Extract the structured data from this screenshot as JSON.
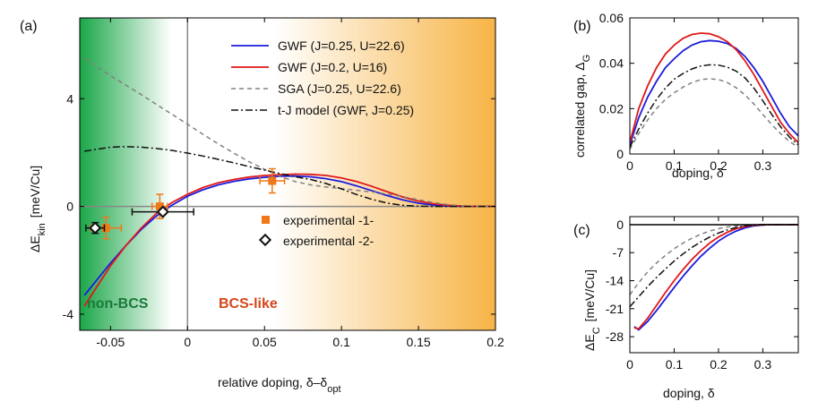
{
  "chart_data": [
    {
      "panel": "(a)",
      "type": "line",
      "xlabel": "relative doping, δ–δ",
      "xlabel_sub": "opt",
      "ylabel": "ΔE",
      "ylabel_sub": "kin",
      "ylabel_units": "[meV/Cu]",
      "xlim": [
        -0.07,
        0.2
      ],
      "ylim": [
        -4.6,
        7.0
      ],
      "xticks": [
        -0.05,
        0,
        0.05,
        0.1,
        0.15,
        0.2
      ],
      "xtick_labels": [
        "-0.05",
        "0",
        "0.05",
        "0.1",
        "0.15",
        "0.2"
      ],
      "yticks": [
        -4,
        0,
        4
      ],
      "ytick_labels": [
        "-4",
        "0",
        "4"
      ],
      "regions": [
        {
          "label": "non-BCS",
          "color": "#1a7a3a"
        },
        {
          "label": "BCS-like",
          "color": "#d4461a"
        }
      ],
      "series": [
        {
          "name": "GWF (J=0.25, U=22.6)",
          "color": "#1c1cdc",
          "style": "solid",
          "x": [
            -0.067,
            -0.05,
            -0.04,
            -0.03,
            -0.02,
            -0.01,
            0,
            0.01,
            0.02,
            0.03,
            0.04,
            0.05,
            0.06,
            0.07,
            0.08,
            0.09,
            0.1,
            0.11,
            0.12,
            0.13,
            0.14,
            0.15,
            0.16,
            0.17,
            0.18,
            0.19,
            0.2
          ],
          "y": [
            -3.3,
            -2.1,
            -1.45,
            -0.85,
            -0.35,
            0.05,
            0.38,
            0.62,
            0.8,
            0.93,
            1.02,
            1.08,
            1.12,
            1.13,
            1.1,
            1.03,
            0.92,
            0.76,
            0.58,
            0.4,
            0.24,
            0.12,
            0.05,
            0.015,
            0.003,
            0,
            0
          ]
        },
        {
          "name": "GWF (J=0.2, U=16)",
          "color": "#e01818",
          "style": "solid",
          "x": [
            -0.067,
            -0.05,
            -0.04,
            -0.03,
            -0.02,
            -0.01,
            0,
            0.01,
            0.02,
            0.03,
            0.04,
            0.05,
            0.06,
            0.07,
            0.08,
            0.09,
            0.1,
            0.11,
            0.12,
            0.13,
            0.14,
            0.15,
            0.16,
            0.17,
            0.18,
            0.19,
            0.2
          ],
          "y": [
            -3.7,
            -2.2,
            -1.45,
            -0.8,
            -0.25,
            0.15,
            0.45,
            0.7,
            0.88,
            1.0,
            1.09,
            1.15,
            1.18,
            1.2,
            1.19,
            1.15,
            1.06,
            0.92,
            0.74,
            0.54,
            0.35,
            0.2,
            0.1,
            0.04,
            0.01,
            0,
            0
          ]
        },
        {
          "name": "SGA (J=0.25, U=22.6)",
          "color": "#808080",
          "style": "dashed",
          "x": [
            -0.067,
            -0.05,
            -0.04,
            -0.03,
            -0.02,
            -0.01,
            0,
            0.01,
            0.02,
            0.03,
            0.04,
            0.05,
            0.06,
            0.07,
            0.08,
            0.09,
            0.1,
            0.11,
            0.12,
            0.13,
            0.14,
            0.15,
            0.16,
            0.17,
            0.18,
            0.19,
            0.2
          ],
          "y": [
            5.5,
            4.85,
            4.5,
            4.15,
            3.78,
            3.42,
            3.05,
            2.68,
            2.32,
            1.98,
            1.66,
            1.38,
            1.12,
            0.92,
            0.8,
            0.72,
            0.66,
            0.6,
            0.54,
            0.46,
            0.36,
            0.25,
            0.14,
            0.06,
            0.02,
            0,
            0
          ]
        },
        {
          "name": "t-J model (GWF, J=0.25)",
          "color": "#111111",
          "style": "dashdot",
          "x": [
            -0.067,
            -0.05,
            -0.04,
            -0.03,
            -0.02,
            -0.01,
            0,
            0.01,
            0.02,
            0.03,
            0.04,
            0.05,
            0.06,
            0.07,
            0.08,
            0.09,
            0.1,
            0.11,
            0.12,
            0.13,
            0.14,
            0.15,
            0.16,
            0.17,
            0.18,
            0.19,
            0.2
          ],
          "y": [
            2.05,
            2.2,
            2.22,
            2.2,
            2.15,
            2.08,
            1.98,
            1.87,
            1.75,
            1.62,
            1.48,
            1.35,
            1.22,
            1.1,
            1.0,
            0.85,
            0.65,
            0.44,
            0.26,
            0.12,
            0.04,
            0.01,
            0,
            0,
            0,
            0,
            0
          ]
        }
      ],
      "experimental": [
        {
          "name": "experimental -1-",
          "marker": "square",
          "color": "#f07818",
          "points": [
            {
              "x": -0.053,
              "y": -0.8,
              "xerr": 0.01,
              "yerr": 0.4
            },
            {
              "x": -0.018,
              "y": 0.0,
              "xerr": 0.005,
              "yerr": 0.45
            },
            {
              "x": 0.055,
              "y": 0.95,
              "xerr": 0.008,
              "yerr": 0.45
            }
          ]
        },
        {
          "name": "experimental -2-",
          "marker": "diamond",
          "color": "#111111",
          "points": [
            {
              "x": -0.06,
              "y": -0.8,
              "xerr": 0.006,
              "yerr": 0.2
            },
            {
              "x": -0.016,
              "y": -0.2,
              "xerr": 0.02,
              "yerr": 0.05
            }
          ]
        }
      ]
    },
    {
      "panel": "(b)",
      "type": "line",
      "xlabel": "doping, δ",
      "ylabel": "correlated gap, Δ",
      "ylabel_sub": "G",
      "xlim": [
        0,
        0.38
      ],
      "ylim": [
        0,
        0.06
      ],
      "xticks": [
        0,
        0.1,
        0.2,
        0.3
      ],
      "xtick_labels": [
        "0",
        "0.1",
        "0.2",
        "0.3"
      ],
      "yticks": [
        0,
        0.02,
        0.04,
        0.06
      ],
      "ytick_labels": [
        "0",
        "0.02",
        "0.04",
        "0.06"
      ],
      "series": [
        {
          "name": "GWF (J=0.25, U=22.6)",
          "color": "#1c1cdc",
          "style": "solid",
          "x": [
            0,
            0.02,
            0.04,
            0.06,
            0.08,
            0.1,
            0.12,
            0.14,
            0.16,
            0.18,
            0.2,
            0.22,
            0.24,
            0.26,
            0.28,
            0.3,
            0.32,
            0.34,
            0.36,
            0.38
          ],
          "y": [
            0.004,
            0.016,
            0.025,
            0.032,
            0.038,
            0.042,
            0.0455,
            0.048,
            0.0495,
            0.05,
            0.0497,
            0.0487,
            0.0465,
            0.043,
            0.038,
            0.032,
            0.025,
            0.018,
            0.012,
            0.008
          ]
        },
        {
          "name": "GWF (J=0.2, U=16)",
          "color": "#e01818",
          "style": "solid",
          "x": [
            0,
            0.02,
            0.04,
            0.06,
            0.08,
            0.1,
            0.12,
            0.14,
            0.16,
            0.18,
            0.2,
            0.22,
            0.24,
            0.26,
            0.28,
            0.3,
            0.32,
            0.34,
            0.36,
            0.38
          ],
          "y": [
            0.005,
            0.02,
            0.03,
            0.038,
            0.044,
            0.048,
            0.051,
            0.0527,
            0.0533,
            0.053,
            0.0517,
            0.0495,
            0.046,
            0.041,
            0.035,
            0.028,
            0.021,
            0.014,
            0.009,
            0.005
          ]
        },
        {
          "name": "SGA (J=0.25, U=22.6)",
          "color": "#808080",
          "style": "dashed",
          "x": [
            0,
            0.02,
            0.04,
            0.06,
            0.08,
            0.1,
            0.12,
            0.14,
            0.16,
            0.18,
            0.2,
            0.22,
            0.24,
            0.26,
            0.28,
            0.3,
            0.32,
            0.34,
            0.36,
            0.38
          ],
          "y": [
            0.002,
            0.009,
            0.015,
            0.02,
            0.024,
            0.027,
            0.0295,
            0.0315,
            0.0328,
            0.0332,
            0.0328,
            0.0315,
            0.0292,
            0.026,
            0.022,
            0.0175,
            0.013,
            0.009,
            0.0055,
            0.003
          ]
        },
        {
          "name": "t-J model (GWF, J=0.25)",
          "color": "#111111",
          "style": "dashdot",
          "x": [
            0,
            0.02,
            0.04,
            0.06,
            0.08,
            0.1,
            0.12,
            0.14,
            0.16,
            0.18,
            0.2,
            0.22,
            0.24,
            0.26,
            0.28,
            0.3,
            0.32,
            0.34,
            0.36,
            0.38
          ],
          "y": [
            0.003,
            0.011,
            0.018,
            0.024,
            0.029,
            0.033,
            0.0355,
            0.0375,
            0.0388,
            0.0393,
            0.0392,
            0.0383,
            0.0365,
            0.0335,
            0.029,
            0.0235,
            0.0175,
            0.012,
            0.0075,
            0.004
          ]
        }
      ]
    },
    {
      "panel": "(c)",
      "type": "line",
      "xlabel": "doping, δ",
      "ylabel": "ΔE",
      "ylabel_sub": "C",
      "ylabel_units": "[meV/Cu]",
      "xlim": [
        0,
        0.38
      ],
      "ylim": [
        -32,
        2
      ],
      "xticks": [
        0,
        0.1,
        0.2,
        0.3
      ],
      "xtick_labels": [
        "0",
        "0.1",
        "0.2",
        "0.3"
      ],
      "yticks": [
        0,
        -7,
        -14,
        -21,
        -28
      ],
      "ytick_labels": [
        "0",
        "-7",
        "-14",
        "-21",
        "-28"
      ],
      "series": [
        {
          "name": "GWF (J=0.25, U=22.6)",
          "color": "#1c1cdc",
          "style": "solid",
          "x": [
            0.01,
            0.02,
            0.04,
            0.06,
            0.08,
            0.1,
            0.12,
            0.14,
            0.16,
            0.18,
            0.2,
            0.22,
            0.24,
            0.26,
            0.28,
            0.3,
            0.32,
            0.34,
            0.36,
            0.38
          ],
          "y": [
            -25.5,
            -26.3,
            -24.2,
            -21.5,
            -18.6,
            -15.7,
            -12.9,
            -10.3,
            -7.9,
            -5.9,
            -4.1,
            -2.7,
            -1.6,
            -0.8,
            -0.3,
            -0.1,
            0,
            0,
            0,
            0
          ]
        },
        {
          "name": "GWF (J=0.2, U=16)",
          "color": "#e01818",
          "style": "solid",
          "x": [
            0.01,
            0.02,
            0.04,
            0.06,
            0.08,
            0.1,
            0.12,
            0.14,
            0.16,
            0.18,
            0.2,
            0.22,
            0.24,
            0.26,
            0.28,
            0.3,
            0.32,
            0.34,
            0.36,
            0.38
          ],
          "y": [
            -25.8,
            -26.0,
            -23.4,
            -20.2,
            -17.0,
            -14.0,
            -11.2,
            -8.7,
            -6.5,
            -4.6,
            -3.1,
            -1.9,
            -1.0,
            -0.45,
            -0.15,
            -0.05,
            0,
            0,
            0,
            0
          ]
        },
        {
          "name": "SGA (J=0.25, U=22.6)",
          "color": "#808080",
          "style": "dashed",
          "x": [
            0,
            0.02,
            0.04,
            0.06,
            0.08,
            0.1,
            0.12,
            0.14,
            0.16,
            0.18,
            0.2,
            0.22,
            0.24,
            0.26,
            0.28,
            0.3,
            0.32,
            0.34,
            0.36,
            0.38
          ],
          "y": [
            -17.5,
            -14.5,
            -11.8,
            -9.6,
            -7.7,
            -6.0,
            -4.6,
            -3.4,
            -2.4,
            -1.6,
            -1.0,
            -0.6,
            -0.3,
            -0.12,
            -0.04,
            0,
            0,
            0,
            0,
            0
          ]
        },
        {
          "name": "t-J model (GWF, J=0.25)",
          "color": "#111111",
          "style": "dashdot",
          "x": [
            0,
            0.02,
            0.04,
            0.06,
            0.08,
            0.1,
            0.12,
            0.14,
            0.16,
            0.18,
            0.2,
            0.22,
            0.24,
            0.26,
            0.28,
            0.3,
            0.32,
            0.34,
            0.36,
            0.38
          ],
          "y": [
            -20.5,
            -18.0,
            -15.5,
            -13.2,
            -11.1,
            -9.1,
            -7.3,
            -5.7,
            -4.3,
            -3.1,
            -2.1,
            -1.3,
            -0.7,
            -0.3,
            -0.1,
            0,
            0,
            0,
            0,
            0
          ]
        }
      ]
    }
  ]
}
